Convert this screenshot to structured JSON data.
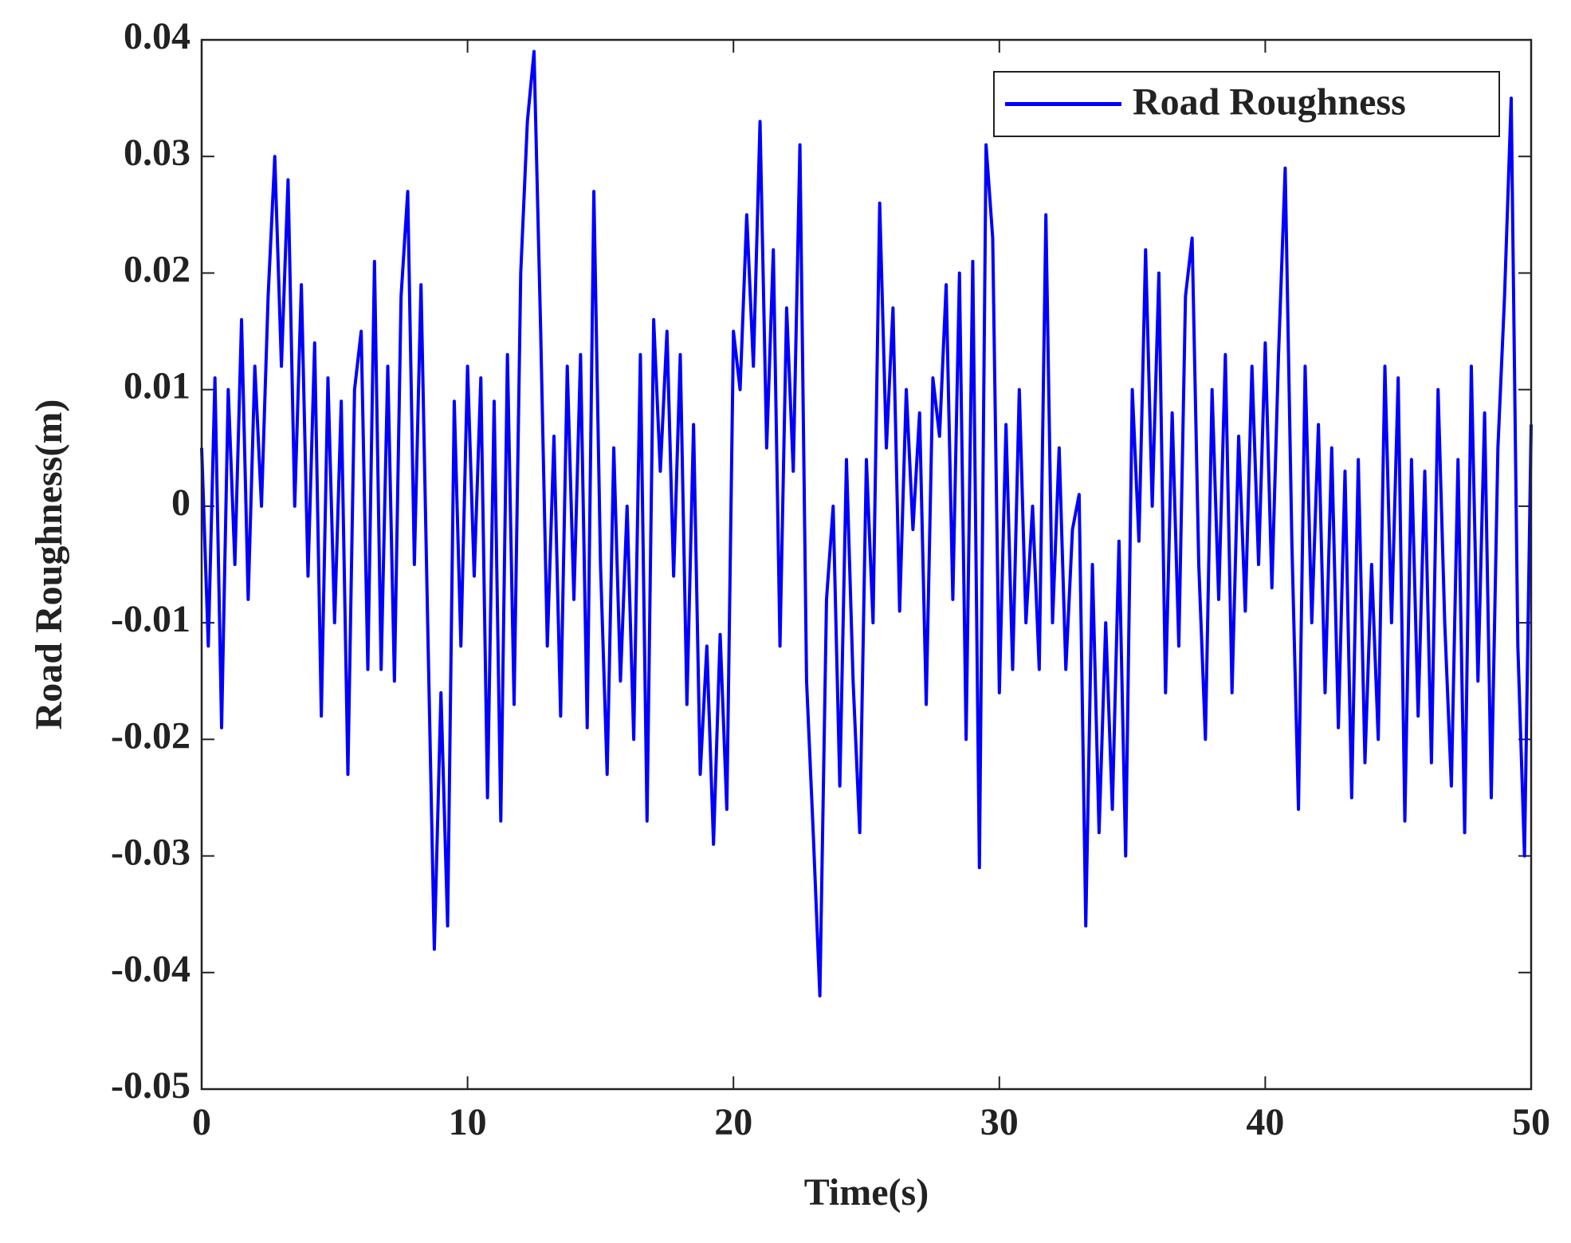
{
  "chart_data": {
    "type": "line",
    "xlabel": "Time(s)",
    "ylabel": "Road Roughness(m)",
    "xlim": [
      0,
      50
    ],
    "ylim": [
      -0.05,
      0.04
    ],
    "xticks": [
      0,
      10,
      20,
      30,
      40,
      50
    ],
    "yticks": [
      -0.05,
      -0.04,
      -0.03,
      -0.02,
      -0.01,
      0,
      0.01,
      0.02,
      0.03,
      0.04
    ],
    "legend": "northeast",
    "grid": false,
    "x": [
      0,
      0.25,
      0.5,
      0.75,
      1,
      1.25,
      1.5,
      1.75,
      2,
      2.25,
      2.5,
      2.75,
      3,
      3.25,
      3.5,
      3.75,
      4,
      4.25,
      4.5,
      4.75,
      5,
      5.25,
      5.5,
      5.75,
      6,
      6.25,
      6.5,
      6.75,
      7,
      7.25,
      7.5,
      7.75,
      8,
      8.25,
      8.5,
      8.75,
      9,
      9.25,
      9.5,
      9.75,
      10,
      10.25,
      10.5,
      10.75,
      11,
      11.25,
      11.5,
      11.75,
      12,
      12.25,
      12.5,
      12.75,
      13,
      13.25,
      13.5,
      13.75,
      14,
      14.25,
      14.5,
      14.75,
      15,
      15.25,
      15.5,
      15.75,
      16,
      16.25,
      16.5,
      16.75,
      17,
      17.25,
      17.5,
      17.75,
      18,
      18.25,
      18.5,
      18.75,
      19,
      19.25,
      19.5,
      19.75,
      20,
      20.25,
      20.5,
      20.75,
      21,
      21.25,
      21.5,
      21.75,
      22,
      22.25,
      22.5,
      22.75,
      23,
      23.25,
      23.5,
      23.75,
      24,
      24.25,
      24.5,
      24.75,
      25,
      25.25,
      25.5,
      25.75,
      26,
      26.25,
      26.5,
      26.75,
      27,
      27.25,
      27.5,
      27.75,
      28,
      28.25,
      28.5,
      28.75,
      29,
      29.25,
      29.5,
      29.75,
      30,
      30.25,
      30.5,
      30.75,
      31,
      31.25,
      31.5,
      31.75,
      32,
      32.25,
      32.5,
      32.75,
      33,
      33.25,
      33.5,
      33.75,
      34,
      34.25,
      34.5,
      34.75,
      35,
      35.25,
      35.5,
      35.75,
      36,
      36.25,
      36.5,
      36.75,
      37,
      37.25,
      37.5,
      37.75,
      38,
      38.25,
      38.5,
      38.75,
      39,
      39.25,
      39.5,
      39.75,
      40,
      40.25,
      40.5,
      40.75,
      41,
      41.25,
      41.5,
      41.75,
      42,
      42.25,
      42.5,
      42.75,
      43,
      43.25,
      43.5,
      43.75,
      44,
      44.25,
      44.5,
      44.75,
      45,
      45.25,
      45.5,
      45.75,
      46,
      46.25,
      46.5,
      46.75,
      47,
      47.25,
      47.5,
      47.75,
      48,
      48.25,
      48.5,
      48.75,
      49,
      49.25,
      49.5,
      49.75,
      50
    ],
    "series": [
      {
        "name": "Road Roughness",
        "color": "#0000ff",
        "values": [
          0.005,
          -0.012,
          0.011,
          -0.019,
          0.01,
          -0.005,
          0.016,
          -0.008,
          0.012,
          0.0,
          0.018,
          0.03,
          0.012,
          0.028,
          0.0,
          0.019,
          -0.006,
          0.014,
          -0.018,
          0.011,
          -0.01,
          0.009,
          -0.023,
          0.01,
          0.015,
          -0.014,
          0.021,
          -0.014,
          0.012,
          -0.015,
          0.018,
          0.027,
          -0.005,
          0.019,
          -0.01,
          -0.038,
          -0.016,
          -0.036,
          0.009,
          -0.012,
          0.012,
          -0.006,
          0.011,
          -0.025,
          0.009,
          -0.027,
          0.013,
          -0.017,
          0.02,
          0.033,
          0.039,
          0.015,
          -0.012,
          0.006,
          -0.018,
          0.012,
          -0.008,
          0.013,
          -0.019,
          0.027,
          -0.005,
          -0.023,
          0.005,
          -0.015,
          0.0,
          -0.02,
          0.013,
          -0.027,
          0.016,
          0.003,
          0.015,
          -0.006,
          0.013,
          -0.017,
          0.007,
          -0.023,
          -0.012,
          -0.029,
          -0.011,
          -0.026,
          0.015,
          0.01,
          0.025,
          0.012,
          0.033,
          0.005,
          0.022,
          -0.012,
          0.017,
          0.003,
          0.031,
          -0.015,
          -0.028,
          -0.042,
          -0.008,
          0.0,
          -0.024,
          0.004,
          -0.015,
          -0.028,
          0.004,
          -0.01,
          0.026,
          0.005,
          0.017,
          -0.009,
          0.01,
          -0.002,
          0.008,
          -0.017,
          0.011,
          0.006,
          0.019,
          -0.008,
          0.02,
          -0.02,
          0.021,
          -0.031,
          0.031,
          0.023,
          -0.016,
          0.007,
          -0.014,
          0.01,
          -0.01,
          0.0,
          -0.014,
          0.025,
          -0.01,
          0.005,
          -0.014,
          -0.002,
          0.001,
          -0.036,
          -0.005,
          -0.028,
          -0.01,
          -0.026,
          -0.003,
          -0.03,
          0.01,
          -0.003,
          0.022,
          0.0,
          0.02,
          -0.016,
          0.008,
          -0.012,
          0.018,
          0.023,
          -0.005,
          -0.02,
          0.01,
          -0.008,
          0.013,
          -0.016,
          0.006,
          -0.009,
          0.012,
          -0.005,
          0.014,
          -0.007,
          0.013,
          0.029,
          -0.003,
          -0.026,
          0.012,
          -0.01,
          0.007,
          -0.016,
          0.005,
          -0.019,
          0.003,
          -0.025,
          0.004,
          -0.022,
          -0.005,
          -0.02,
          0.012,
          -0.01,
          0.011,
          -0.027,
          0.004,
          -0.018,
          0.003,
          -0.022,
          0.01,
          -0.01,
          -0.024,
          0.004,
          -0.028,
          0.012,
          -0.015,
          0.008,
          -0.025,
          0.005,
          0.018,
          0.035,
          -0.012,
          -0.03,
          0.007
        ]
      }
    ]
  }
}
